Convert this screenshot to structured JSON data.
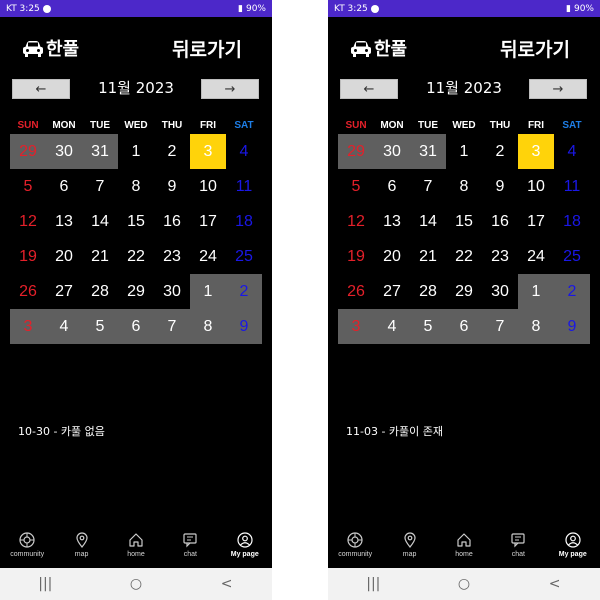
{
  "screens": [
    {
      "status": {
        "carrier_time": "KT 3:25",
        "battery": "90%"
      },
      "header": {
        "logo_text": "한풀",
        "back_label": "뒤로가기"
      },
      "nav": {
        "prev_label": "←",
        "month_label": "11월 2023",
        "next_label": "→"
      },
      "weekdays": [
        "SUN",
        "MON",
        "TUE",
        "WED",
        "THU",
        "FRI",
        "SAT"
      ],
      "days": [
        "29",
        "30",
        "31",
        "1",
        "2",
        "3",
        "4",
        "5",
        "6",
        "7",
        "8",
        "9",
        "10",
        "11",
        "12",
        "13",
        "14",
        "15",
        "16",
        "17",
        "18",
        "19",
        "20",
        "21",
        "22",
        "23",
        "24",
        "25",
        "26",
        "27",
        "28",
        "29",
        "30",
        "1",
        "2",
        "3",
        "4",
        "5",
        "6",
        "7",
        "8",
        "9"
      ],
      "other_month": [
        0,
        1,
        2,
        33,
        34,
        35,
        36,
        37,
        38,
        39,
        40,
        41
      ],
      "today_index": 5,
      "info_text": "10-30 - 카풀 없음"
    },
    {
      "status": {
        "carrier_time": "KT 3:25",
        "battery": "90%"
      },
      "header": {
        "logo_text": "한풀",
        "back_label": "뒤로가기"
      },
      "nav": {
        "prev_label": "←",
        "month_label": "11월 2023",
        "next_label": "→"
      },
      "weekdays": [
        "SUN",
        "MON",
        "TUE",
        "WED",
        "THU",
        "FRI",
        "SAT"
      ],
      "days": [
        "29",
        "30",
        "31",
        "1",
        "2",
        "3",
        "4",
        "5",
        "6",
        "7",
        "8",
        "9",
        "10",
        "11",
        "12",
        "13",
        "14",
        "15",
        "16",
        "17",
        "18",
        "19",
        "20",
        "21",
        "22",
        "23",
        "24",
        "25",
        "26",
        "27",
        "28",
        "29",
        "30",
        "1",
        "2",
        "3",
        "4",
        "5",
        "6",
        "7",
        "8",
        "9"
      ],
      "other_month": [
        0,
        1,
        2,
        33,
        34,
        35,
        36,
        37,
        38,
        39,
        40,
        41
      ],
      "today_index": 5,
      "info_text": "11-03 - 카풀이 존재"
    }
  ],
  "bottom_nav": {
    "items": [
      {
        "label": "community",
        "icon": "community-icon"
      },
      {
        "label": "map",
        "icon": "map-pin-icon"
      },
      {
        "label": "home",
        "icon": "home-icon"
      },
      {
        "label": "chat",
        "icon": "chat-icon"
      },
      {
        "label": "My page",
        "icon": "user-icon"
      }
    ]
  },
  "system_nav": {
    "recent": "|||",
    "home": "○",
    "back": "<"
  },
  "colors": {
    "status_bar": "#4c28c9",
    "sunday": "#e4202a",
    "saturday": "#1a17e6",
    "other_month_bg": "#5f5f5f",
    "today_bg": "#ffd30a"
  }
}
